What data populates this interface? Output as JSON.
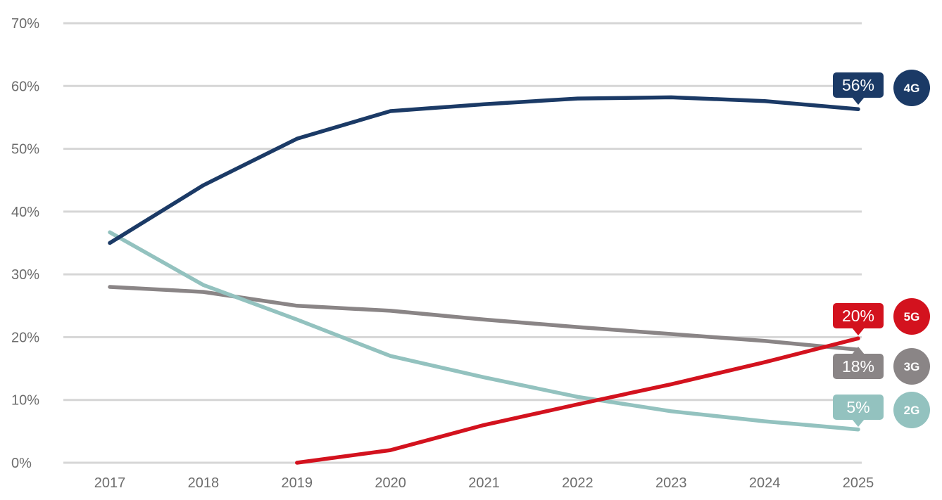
{
  "chart_data": {
    "type": "line",
    "title": "",
    "xlabel": "",
    "ylabel": "",
    "x": [
      "2017",
      "2018",
      "2019",
      "2020",
      "2021",
      "2022",
      "2023",
      "2024",
      "2025"
    ],
    "ylim": [
      0,
      70
    ],
    "yticks": [
      0,
      10,
      20,
      30,
      40,
      50,
      60,
      70
    ],
    "ytick_labels": [
      "0%",
      "10%",
      "20%",
      "30%",
      "40%",
      "50%",
      "60%",
      "70%"
    ],
    "grid": true,
    "legend": "right, end-of-line badges",
    "series": [
      {
        "name": "4G",
        "color": "#1b3a66",
        "values": [
          35,
          44.2,
          51.6,
          56,
          57.1,
          58,
          58.2,
          57.6,
          56.3
        ],
        "end_label": "56%"
      },
      {
        "name": "5G",
        "color": "#d3121e",
        "values": [
          null,
          null,
          0,
          2,
          6,
          9.3,
          12.5,
          16,
          19.8
        ],
        "end_label": "20%"
      },
      {
        "name": "3G",
        "color": "#8a8586",
        "values": [
          28,
          27.2,
          25,
          24.2,
          22.8,
          21.6,
          20.5,
          19.4,
          18
        ],
        "end_label": "18%"
      },
      {
        "name": "2G",
        "color": "#93c2bf",
        "values": [
          36.7,
          28.3,
          22.8,
          17,
          13.6,
          10.5,
          8.2,
          6.6,
          5.3
        ],
        "end_label": "5%"
      }
    ]
  }
}
